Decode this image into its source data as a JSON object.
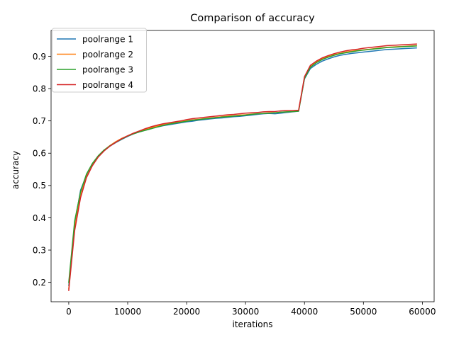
{
  "chart_data": {
    "type": "line",
    "title": "Comparison of accuracy",
    "xlabel": "iterations",
    "ylabel": "accuracy",
    "xlim": [
      -3000,
      62000
    ],
    "ylim": [
      0.14,
      0.98
    ],
    "xticks": [
      0,
      10000,
      20000,
      30000,
      40000,
      50000,
      60000
    ],
    "yticks": [
      0.2,
      0.3,
      0.4,
      0.5,
      0.6,
      0.7,
      0.8,
      0.9
    ],
    "grid": false,
    "legend_position": "top-left",
    "x": [
      0,
      1000,
      2000,
      3000,
      4000,
      5000,
      6000,
      7000,
      8000,
      9000,
      10000,
      11000,
      12000,
      13000,
      14000,
      15000,
      16000,
      17000,
      18000,
      19000,
      20000,
      21000,
      22000,
      23000,
      24000,
      25000,
      26000,
      27000,
      28000,
      29000,
      30000,
      31000,
      32000,
      33000,
      34000,
      35000,
      36000,
      37000,
      38000,
      39000,
      40000,
      41000,
      42000,
      43000,
      44000,
      45000,
      46000,
      47000,
      48000,
      49000,
      50000,
      51000,
      52000,
      53000,
      54000,
      55000,
      56000,
      57000,
      58000,
      59000
    ],
    "series": [
      {
        "name": "poolrange 1",
        "color": "#1f77b4",
        "values": [
          0.19,
          0.38,
          0.485,
          0.532,
          0.565,
          0.59,
          0.608,
          0.622,
          0.633,
          0.643,
          0.652,
          0.66,
          0.666,
          0.671,
          0.676,
          0.681,
          0.685,
          0.688,
          0.691,
          0.694,
          0.697,
          0.699,
          0.702,
          0.704,
          0.706,
          0.708,
          0.709,
          0.711,
          0.713,
          0.714,
          0.716,
          0.718,
          0.72,
          0.722,
          0.723,
          0.722,
          0.724,
          0.726,
          0.728,
          0.73,
          0.83,
          0.862,
          0.875,
          0.885,
          0.892,
          0.898,
          0.903,
          0.906,
          0.909,
          0.911,
          0.913,
          0.915,
          0.917,
          0.919,
          0.921,
          0.922,
          0.923,
          0.924,
          0.925,
          0.926
        ]
      },
      {
        "name": "poolrange 2",
        "color": "#ff7f0e",
        "values": [
          0.18,
          0.37,
          0.468,
          0.527,
          0.562,
          0.589,
          0.609,
          0.624,
          0.636,
          0.646,
          0.654,
          0.662,
          0.668,
          0.674,
          0.679,
          0.684,
          0.688,
          0.691,
          0.694,
          0.697,
          0.7,
          0.703,
          0.705,
          0.707,
          0.709,
          0.711,
          0.713,
          0.715,
          0.716,
          0.718,
          0.719,
          0.721,
          0.722,
          0.723,
          0.725,
          0.725,
          0.727,
          0.728,
          0.729,
          0.731,
          0.834,
          0.868,
          0.882,
          0.892,
          0.899,
          0.905,
          0.909,
          0.913,
          0.916,
          0.918,
          0.92,
          0.922,
          0.924,
          0.926,
          0.928,
          0.929,
          0.93,
          0.931,
          0.932,
          0.933
        ]
      },
      {
        "name": "poolrange 3",
        "color": "#2ca02c",
        "values": [
          0.2,
          0.39,
          0.48,
          0.535,
          0.568,
          0.592,
          0.61,
          0.623,
          0.634,
          0.644,
          0.653,
          0.66,
          0.666,
          0.671,
          0.676,
          0.681,
          0.686,
          0.69,
          0.693,
          0.696,
          0.699,
          0.702,
          0.704,
          0.706,
          0.708,
          0.71,
          0.712,
          0.713,
          0.715,
          0.716,
          0.718,
          0.72,
          0.722,
          0.723,
          0.724,
          0.725,
          0.727,
          0.728,
          0.729,
          0.73,
          0.832,
          0.866,
          0.88,
          0.89,
          0.897,
          0.903,
          0.908,
          0.911,
          0.914,
          0.917,
          0.919,
          0.921,
          0.923,
          0.925,
          0.927,
          0.928,
          0.929,
          0.93,
          0.931,
          0.932
        ]
      },
      {
        "name": "poolrange 4",
        "color": "#d62728",
        "values": [
          0.175,
          0.36,
          0.462,
          0.524,
          0.561,
          0.588,
          0.607,
          0.622,
          0.634,
          0.645,
          0.654,
          0.662,
          0.669,
          0.676,
          0.682,
          0.687,
          0.691,
          0.694,
          0.697,
          0.7,
          0.704,
          0.707,
          0.709,
          0.711,
          0.713,
          0.715,
          0.717,
          0.719,
          0.72,
          0.722,
          0.724,
          0.725,
          0.726,
          0.728,
          0.729,
          0.729,
          0.731,
          0.732,
          0.732,
          0.733,
          0.837,
          0.872,
          0.885,
          0.895,
          0.902,
          0.908,
          0.913,
          0.917,
          0.92,
          0.922,
          0.925,
          0.927,
          0.929,
          0.931,
          0.933,
          0.934,
          0.935,
          0.936,
          0.937,
          0.938
        ]
      }
    ]
  }
}
